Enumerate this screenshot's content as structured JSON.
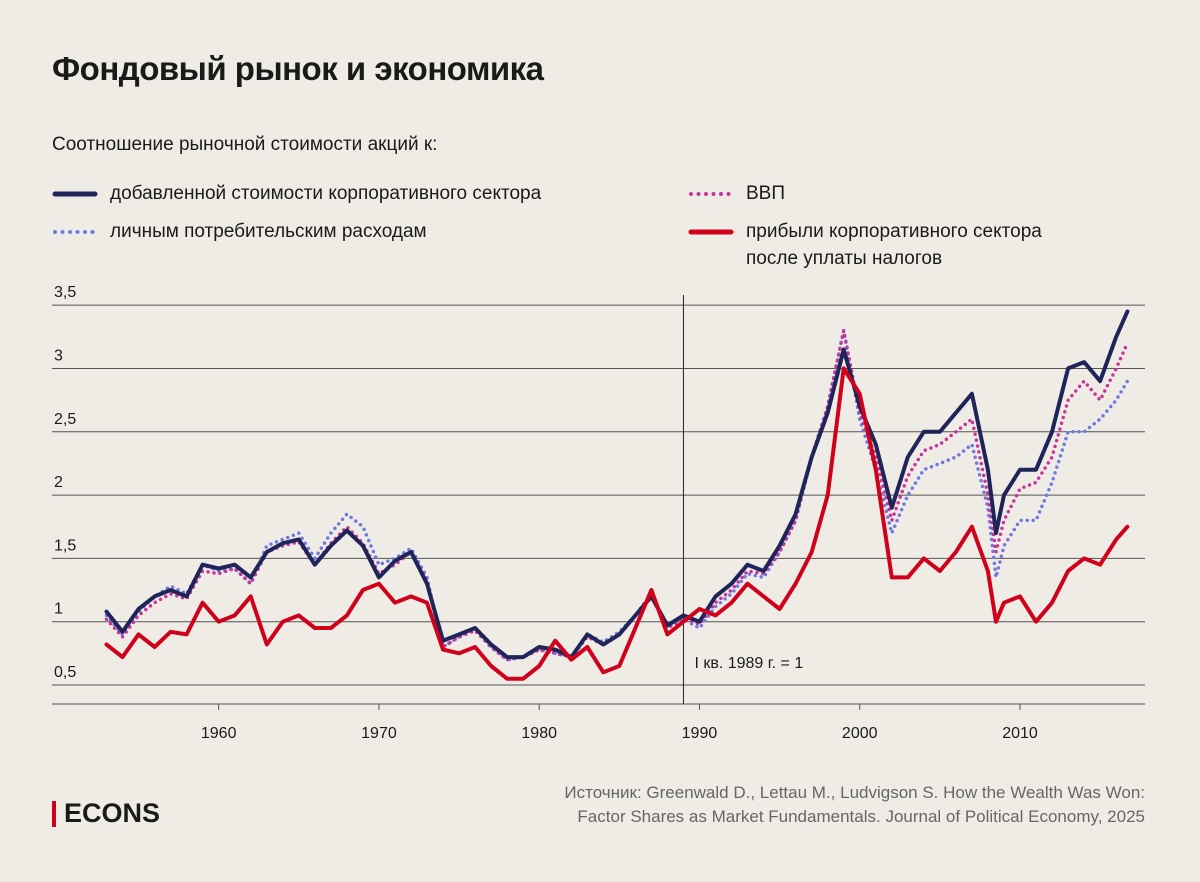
{
  "chart_data": {
    "type": "line",
    "title": "Фондовый рынок и экономика",
    "subtitle": "Соотношение рыночной стоимости акций к:",
    "x": [
      1953,
      1954,
      1955,
      1956,
      1957,
      1958,
      1959,
      1960,
      1961,
      1962,
      1963,
      1964,
      1965,
      1966,
      1967,
      1968,
      1969,
      1970,
      1971,
      1972,
      1973,
      1974,
      1975,
      1976,
      1977,
      1978,
      1979,
      1980,
      1981,
      1982,
      1983,
      1984,
      1985,
      1986,
      1987,
      1988,
      1989,
      1990,
      1991,
      1992,
      1993,
      1994,
      1995,
      1996,
      1997,
      1998,
      1999,
      2000,
      2001,
      2002,
      2003,
      2004,
      2005,
      2006,
      2007,
      2008,
      2008.5,
      2009,
      2010,
      2011,
      2012,
      2013,
      2014,
      2015,
      2016,
      2016.7
    ],
    "series": [
      {
        "name": "добавленной стоимости корпоративного сектора",
        "color": "#1f2459",
        "style": "solid",
        "values": [
          1.08,
          0.92,
          1.1,
          1.2,
          1.25,
          1.2,
          1.45,
          1.42,
          1.45,
          1.35,
          1.55,
          1.62,
          1.65,
          1.45,
          1.6,
          1.72,
          1.6,
          1.35,
          1.48,
          1.55,
          1.3,
          0.85,
          0.9,
          0.95,
          0.82,
          0.72,
          0.72,
          0.8,
          0.78,
          0.72,
          0.9,
          0.82,
          0.9,
          1.05,
          1.2,
          0.97,
          1.05,
          1.0,
          1.2,
          1.3,
          1.45,
          1.4,
          1.6,
          1.85,
          2.3,
          2.65,
          3.15,
          2.7,
          2.4,
          1.9,
          2.3,
          2.5,
          2.5,
          2.65,
          2.8,
          2.2,
          1.7,
          2.0,
          2.2,
          2.2,
          2.5,
          3.0,
          3.05,
          2.9,
          3.25,
          3.45
        ]
      },
      {
        "name": "ВВП",
        "color": "#c8359a",
        "style": "dotted",
        "values": [
          1.02,
          0.88,
          1.05,
          1.15,
          1.22,
          1.18,
          1.4,
          1.38,
          1.42,
          1.3,
          1.55,
          1.6,
          1.63,
          1.45,
          1.62,
          1.75,
          1.62,
          1.38,
          1.45,
          1.55,
          1.32,
          0.8,
          0.88,
          0.93,
          0.8,
          0.7,
          0.72,
          0.78,
          0.75,
          0.72,
          0.88,
          0.82,
          0.9,
          1.05,
          1.22,
          0.95,
          1.03,
          0.98,
          1.15,
          1.25,
          1.4,
          1.38,
          1.55,
          1.8,
          2.3,
          2.7,
          3.3,
          2.65,
          2.3,
          1.8,
          2.15,
          2.35,
          2.4,
          2.5,
          2.6,
          2.0,
          1.55,
          1.8,
          2.05,
          2.1,
          2.3,
          2.75,
          2.9,
          2.75,
          3.0,
          3.2
        ]
      },
      {
        "name": "личным потребительским расходам",
        "color": "#6f79e0",
        "style": "dotted",
        "values": [
          1.05,
          0.9,
          1.08,
          1.2,
          1.28,
          1.22,
          1.45,
          1.4,
          1.42,
          1.3,
          1.6,
          1.65,
          1.7,
          1.5,
          1.7,
          1.85,
          1.75,
          1.45,
          1.5,
          1.58,
          1.35,
          0.8,
          0.88,
          0.95,
          0.8,
          0.7,
          0.72,
          0.78,
          0.75,
          0.72,
          0.9,
          0.84,
          0.92,
          1.05,
          1.2,
          0.95,
          1.02,
          0.95,
          1.12,
          1.22,
          1.38,
          1.35,
          1.55,
          1.8,
          2.3,
          2.7,
          3.3,
          2.6,
          2.2,
          1.7,
          2.0,
          2.2,
          2.25,
          2.3,
          2.4,
          1.9,
          1.35,
          1.6,
          1.8,
          1.8,
          2.1,
          2.5,
          2.5,
          2.6,
          2.75,
          2.9
        ]
      },
      {
        "name": "прибыли корпоративного сектора после уплаты налогов",
        "color": "#d0021b",
        "style": "solid",
        "values": [
          0.82,
          0.72,
          0.9,
          0.8,
          0.92,
          0.9,
          1.15,
          1.0,
          1.05,
          1.2,
          0.82,
          1.0,
          1.05,
          0.95,
          0.95,
          1.05,
          1.25,
          1.3,
          1.15,
          1.2,
          1.15,
          0.78,
          0.75,
          0.8,
          0.65,
          0.55,
          0.55,
          0.65,
          0.85,
          0.7,
          0.8,
          0.6,
          0.65,
          0.95,
          1.25,
          0.9,
          1.0,
          1.1,
          1.05,
          1.15,
          1.3,
          1.2,
          1.1,
          1.3,
          1.55,
          2.0,
          3.0,
          2.8,
          2.2,
          1.35,
          1.35,
          1.5,
          1.4,
          1.55,
          1.75,
          1.4,
          1.0,
          1.15,
          1.2,
          1.0,
          1.15,
          1.4,
          1.5,
          1.45,
          1.65,
          1.75
        ]
      }
    ],
    "xlim": [
      1949.6,
      2017.8
    ],
    "ylim": [
      0.35,
      3.58
    ],
    "xticks": [
      1960,
      1970,
      1980,
      1990,
      2000,
      2010
    ],
    "yticks": [
      {
        "value": 0.5,
        "label": "0,5"
      },
      1,
      {
        "value": 1.5,
        "label": "1,5"
      },
      2,
      {
        "value": 2.5,
        "label": "2,5"
      },
      3,
      {
        "value": 3.5,
        "label": "3,5"
      }
    ],
    "grid": true,
    "annotation": {
      "text": "I кв. 1989 г. = 1",
      "x": 1989
    },
    "source": [
      "Источник: Greenwald D., Lettau M., Ludvigson S. How the Wealth Was Won:",
      "Factor Shares as Market Fundamentals. Journal of Political Economy, 2025"
    ],
    "brand": "ECONS"
  }
}
